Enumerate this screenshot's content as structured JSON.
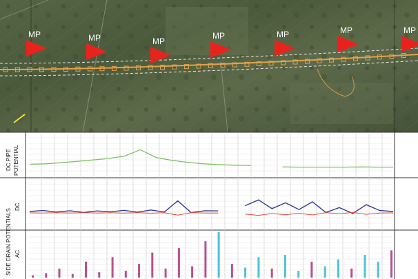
{
  "markers": {
    "label": "MP",
    "count": 7,
    "color": "#e8231e"
  },
  "panels": {
    "dc_pipe": {
      "label_line1": "DC PIPE",
      "label_line2": "POTENTIAL"
    },
    "side_drain": {
      "label_line1": "SIDE DRAIN POTENTIALS",
      "dc": "DC",
      "ac": "AC"
    }
  },
  "colors": {
    "satellite": "#4a5a3c",
    "pipe_route": "#e3a24a",
    "dc_pipe_line": "#7bc35e",
    "dc_series_primary": "#2d3aa0",
    "dc_series_secondary": "#e24a3a",
    "ac_series_magenta": "#b0307a",
    "ac_series_cyan": "#2fb7d2",
    "grid": "#c8c8c8"
  },
  "chart_data": [
    {
      "type": "line",
      "panel": "DC PIPE POTENTIAL",
      "series": [
        {
          "values": [
            0.2,
            0.22,
            0.28,
            0.35,
            0.42,
            0.5,
            0.62,
            0.95,
            0.55,
            0.4,
            0.3,
            0.22,
            0.18,
            0.15,
            0.14,
            null,
            0.06,
            0.05,
            0.05,
            0.05,
            0.05,
            0.06,
            0.05,
            0.05
          ]
        }
      ],
      "grid": true
    },
    {
      "type": "line",
      "panel": "SIDE DRAIN POTENTIALS DC",
      "series": [
        {
          "values": [
            0.0,
            0.05,
            -0.03,
            0.04,
            -0.05,
            0.03,
            -0.02,
            0.06,
            -0.04,
            0.08,
            -0.03,
            0.55,
            -0.06,
            0.04,
            0.03,
            null,
            0.3,
            0.6,
            0.15,
            0.45,
            0.1,
            0.5,
            -0.05,
            0.2,
            -0.1,
            0.35,
            0.05,
            0.0
          ]
        }
      ],
      "grid": true
    },
    {
      "type": "bar",
      "panel": "SIDE DRAIN POTENTIALS AC",
      "series": [
        {
          "values": [
            0.05,
            0.1,
            0.2,
            0.08,
            0.35,
            0.12,
            0.45,
            0.15,
            0.3,
            0.55,
            0.2,
            0.65,
            0.25,
            0.8,
            1.0,
            0.3,
            0.22,
            0.45,
            0.2,
            0.5,
            0.15,
            0.35,
            0.25,
            0.4,
            0.2,
            0.5,
            0.35,
            0.6
          ]
        }
      ],
      "grid": true
    }
  ]
}
